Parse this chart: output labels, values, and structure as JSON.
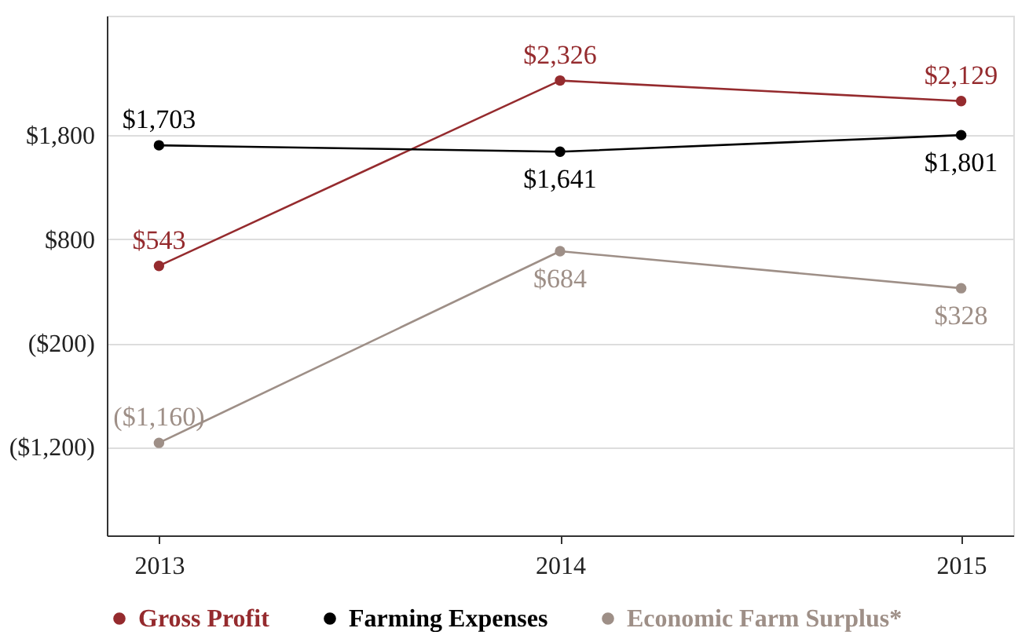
{
  "chart_data": {
    "type": "line",
    "categories": [
      "2013",
      "2014",
      "2015"
    ],
    "series": [
      {
        "name": "Gross Profit",
        "color": "#952b2e",
        "values": [
          543,
          2326,
          2129
        ],
        "value_labels": [
          "$543",
          "$2,326",
          "$2,129"
        ]
      },
      {
        "name": "Farming Expenses",
        "color": "#000000",
        "values": [
          1703,
          1641,
          1801
        ],
        "value_labels": [
          "$1,703",
          "$1,641",
          "$1,801"
        ]
      },
      {
        "name": "Economic Farm Surplus*",
        "color": "#9e8f87",
        "values": [
          -1160,
          684,
          328
        ],
        "value_labels": [
          "($1,160)",
          "$684",
          "$328"
        ]
      }
    ],
    "ylim": [
      -2050,
      2950
    ],
    "yticks": [
      {
        "value": 1800,
        "label": "$1,800"
      },
      {
        "value": 800,
        "label": "$800"
      },
      {
        "value": -200,
        "label": "($200)"
      },
      {
        "value": -1200,
        "label": "($1,200)"
      }
    ],
    "grid": "y",
    "legend": "bottom",
    "marker": "circle",
    "line_style": "solid"
  }
}
